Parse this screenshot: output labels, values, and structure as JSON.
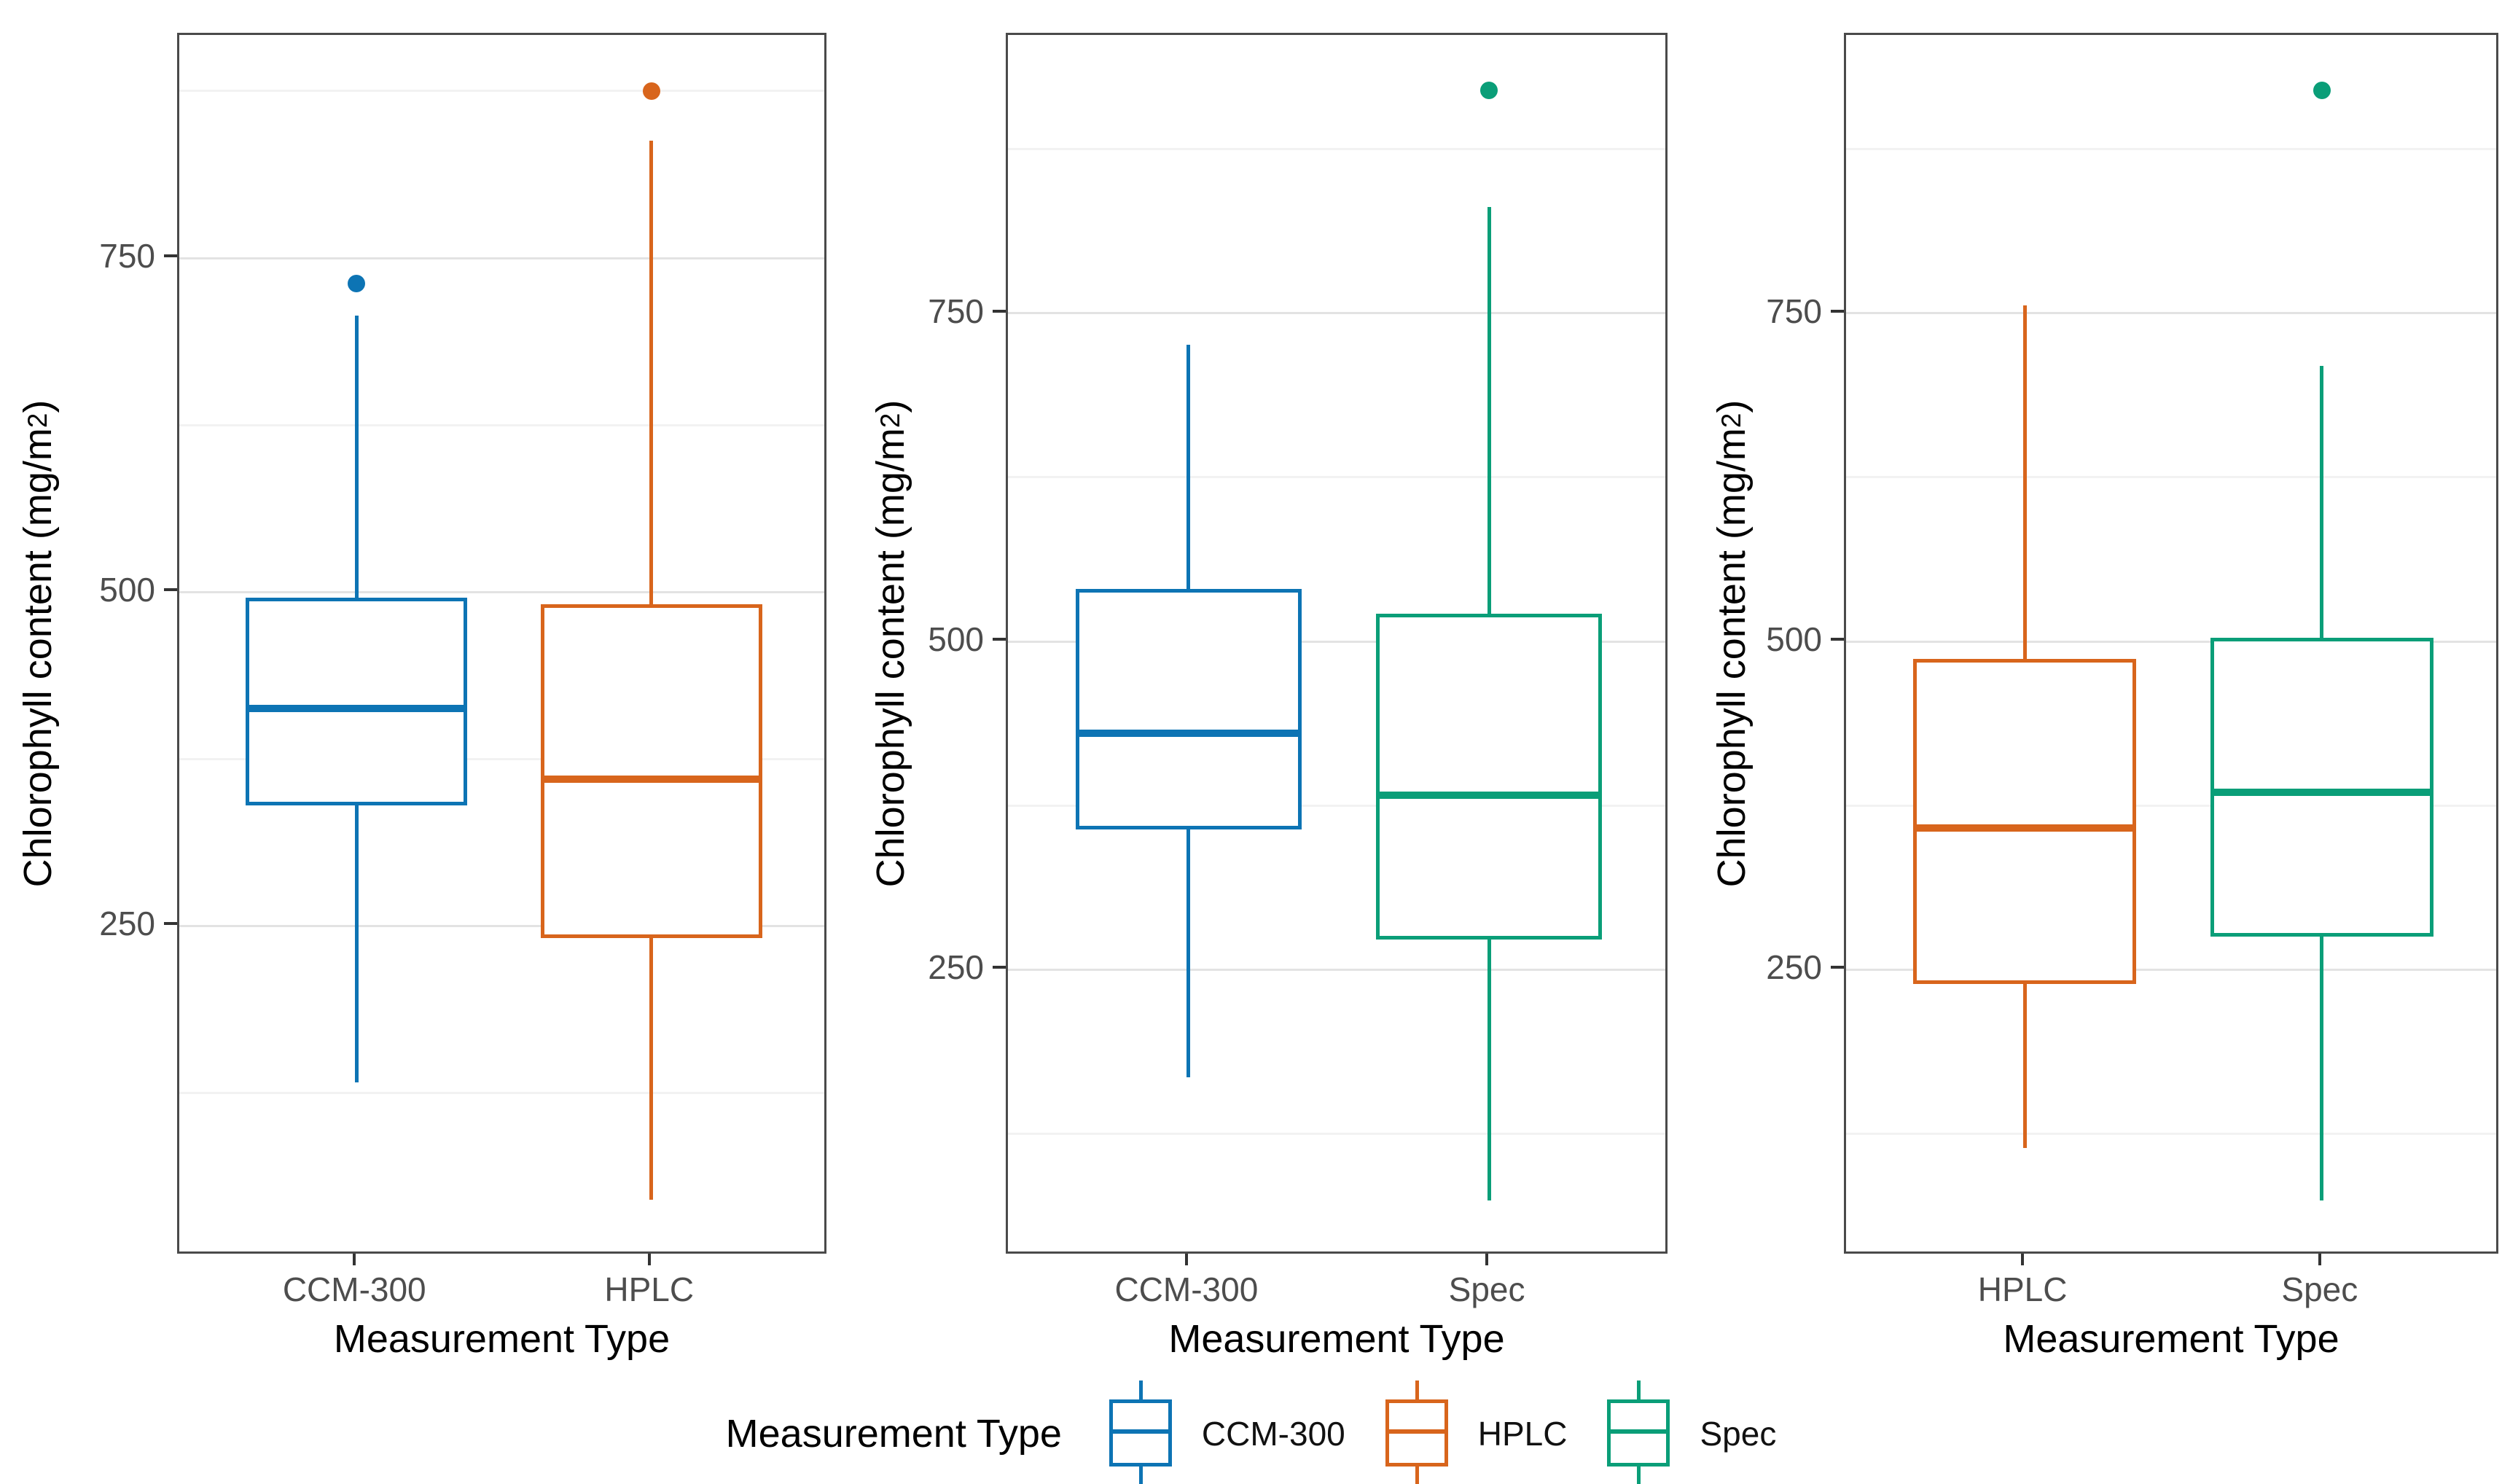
{
  "chart_data": {
    "type": "boxplot",
    "xlabel": "Measurement Type",
    "ylabel": {
      "main": "Chlorophyll content (mg/m",
      "sup": "2",
      "end": ")"
    },
    "yticks": [
      250,
      500,
      750
    ],
    "yticks_minor": [
      125,
      375,
      625,
      875
    ],
    "grid": "on",
    "palette": {
      "CCM-300": "#0d74b4",
      "HPLC": "#d8651c",
      "Spec": "#0a9e78"
    },
    "panels": [
      {
        "name": "CCM-300 vs HPLC",
        "ylim": [
          3,
          917
        ],
        "boxes": [
          {
            "category": "CCM-300",
            "whisker_low": 133,
            "q1": 340,
            "median": 413,
            "q3": 496,
            "whisker_high": 707,
            "outliers": [
              731
            ]
          },
          {
            "category": "HPLC",
            "whisker_low": 45,
            "q1": 241,
            "median": 360,
            "q3": 491,
            "whisker_high": 838,
            "outliers": [
              875
            ]
          }
        ]
      },
      {
        "name": "CCM-300 vs Spec",
        "ylim": [
          32,
          962
        ],
        "boxes": [
          {
            "category": "CCM-300",
            "whisker_low": 168,
            "q1": 357,
            "median": 430,
            "q3": 540,
            "whisker_high": 726,
            "outliers": []
          },
          {
            "category": "Spec",
            "whisker_low": 74,
            "q1": 273,
            "median": 383,
            "q3": 521,
            "whisker_high": 831,
            "outliers": [
              920
            ]
          }
        ]
      },
      {
        "name": "HPLC vs Spec",
        "ylim": [
          32,
          962
        ],
        "boxes": [
          {
            "category": "HPLC",
            "whisker_low": 114,
            "q1": 239,
            "median": 358,
            "q3": 487,
            "whisker_high": 756,
            "outliers": []
          },
          {
            "category": "Spec",
            "whisker_low": 74,
            "q1": 275,
            "median": 385,
            "q3": 503,
            "whisker_high": 710,
            "outliers": [
              920
            ]
          }
        ]
      }
    ],
    "legend_position": "bottom"
  },
  "legend": {
    "title": "Measurement Type",
    "items": [
      {
        "label": "CCM-300"
      },
      {
        "label": "HPLC"
      },
      {
        "label": "Spec"
      }
    ]
  },
  "colors": {
    "axis_text": "#4d4d4d",
    "axis_title": "#000000",
    "panel_border": "#4a4a4a",
    "grid_major": "#e3e3e3",
    "grid_minor": "#f2f2f2",
    "background": "#ffffff"
  }
}
